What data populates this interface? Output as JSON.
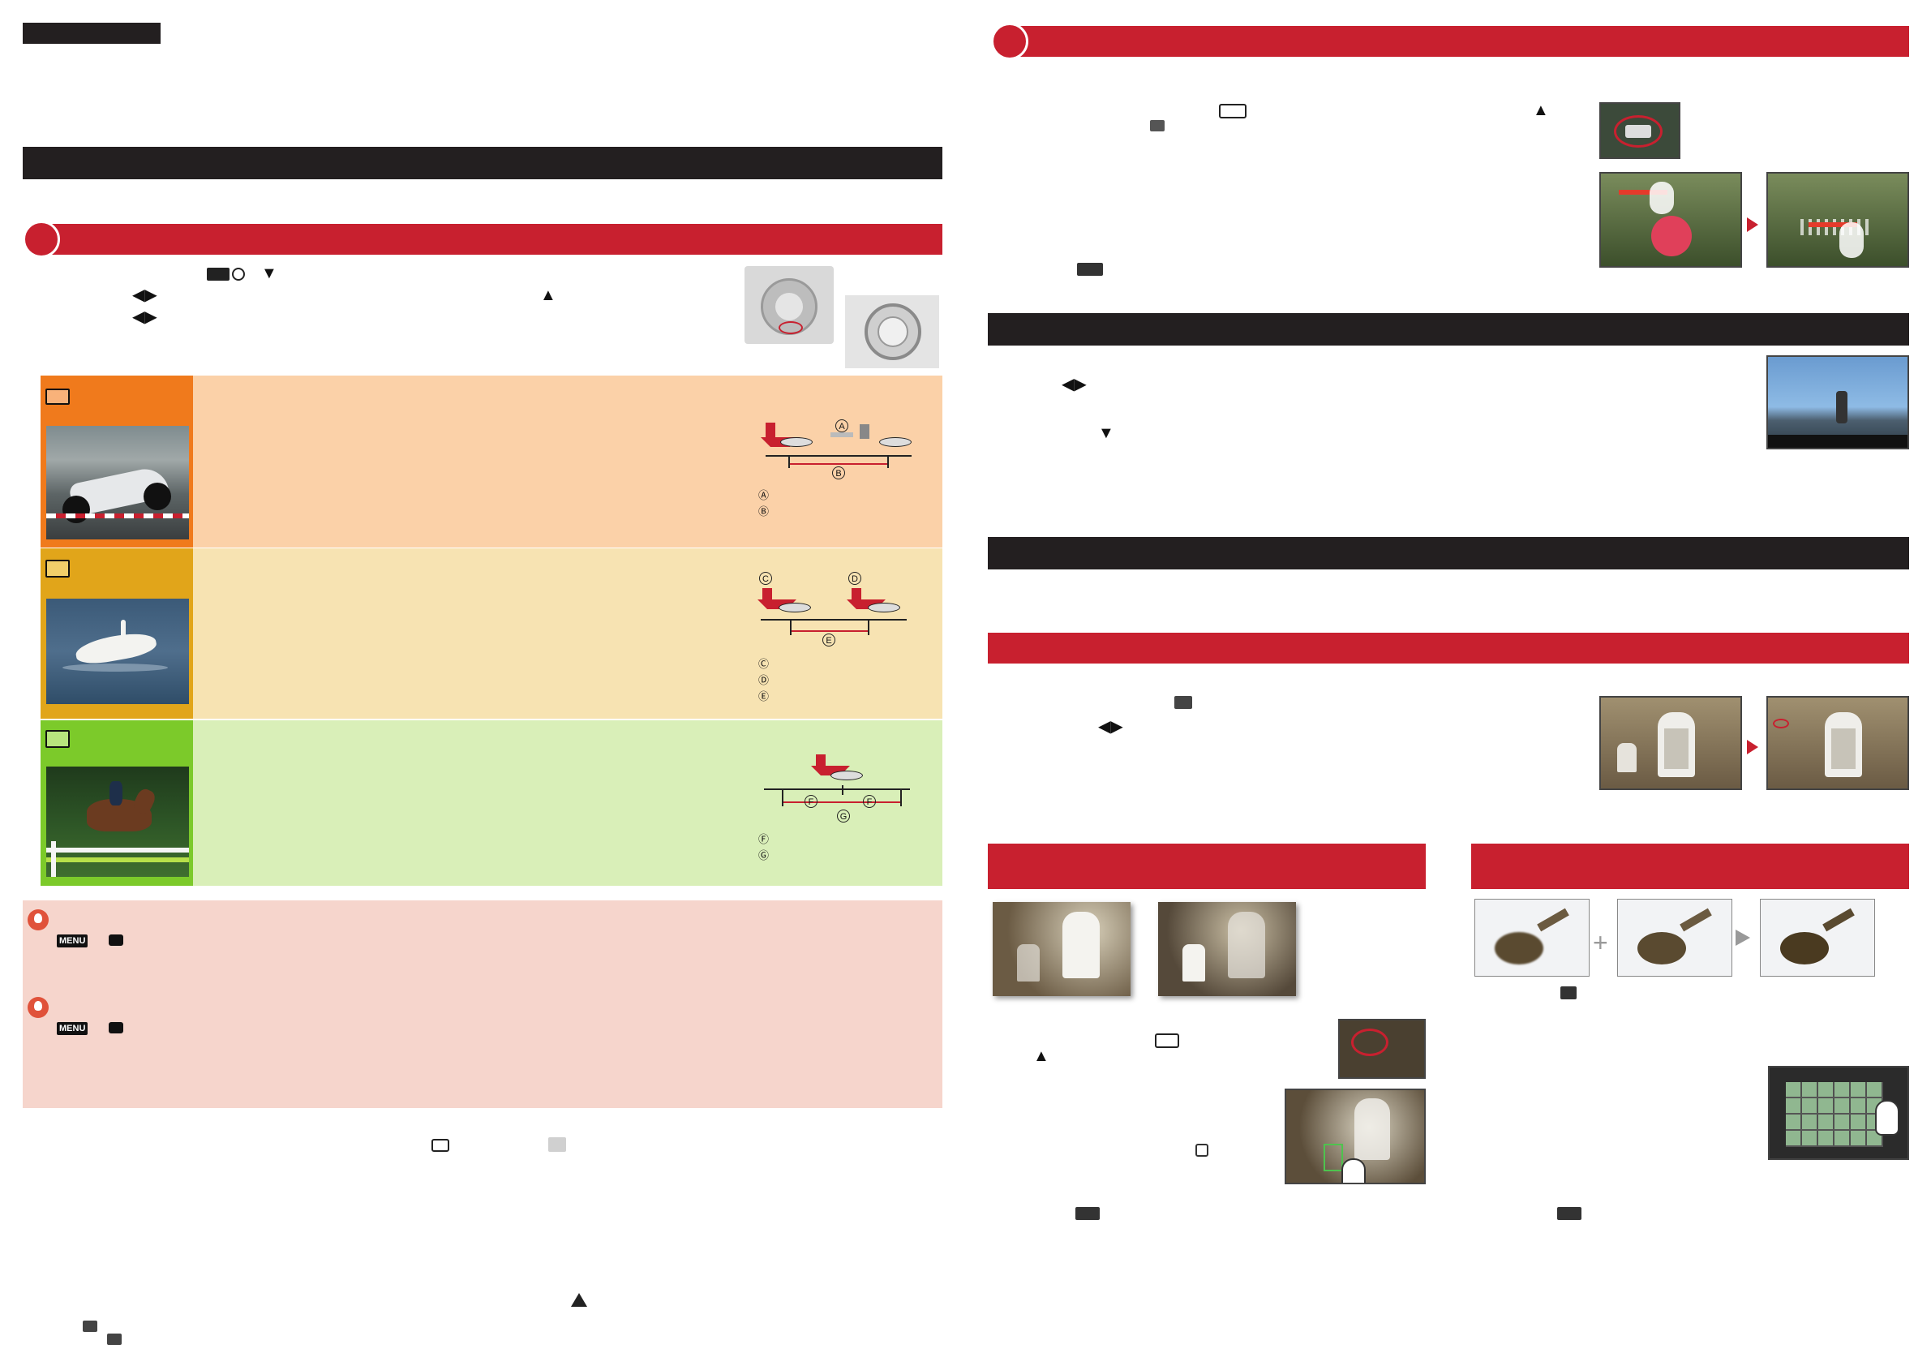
{
  "left": {
    "tag_label": "",
    "warnings": {
      "sym_triangle": "▲",
      "sym_down": "▼",
      "sym_left_right": "◀▶"
    },
    "menu_label": "MENU",
    "letters": [
      "A",
      "B",
      "C",
      "D",
      "E",
      "F",
      "G"
    ],
    "caption_letters_a_b": [
      "Ⓐ",
      "Ⓑ"
    ],
    "caption_letters_c_e": [
      "Ⓒ",
      "Ⓓ",
      "Ⓔ"
    ],
    "caption_letters_f_g": [
      "Ⓕ",
      "Ⓖ"
    ]
  },
  "colors": {
    "black_bar": "#231f20",
    "red_bar": "#c8202f",
    "orange_tile": "#f07a1c",
    "orange_panel": "#fbd1a8",
    "yellow_tile": "#e1a51a",
    "yellow_panel": "#f7e3b2",
    "green_tile": "#7cca2a",
    "green_panel": "#d9efb8",
    "note_panel": "#f6d5cc"
  },
  "icons": [
    "4k-burst-icon",
    "4k-burst-ss-icon",
    "4k-pre-burst-icon",
    "hint-icon",
    "camera-icon",
    "menu-icon",
    "arrow-icon",
    "hand-touch-icon"
  ]
}
